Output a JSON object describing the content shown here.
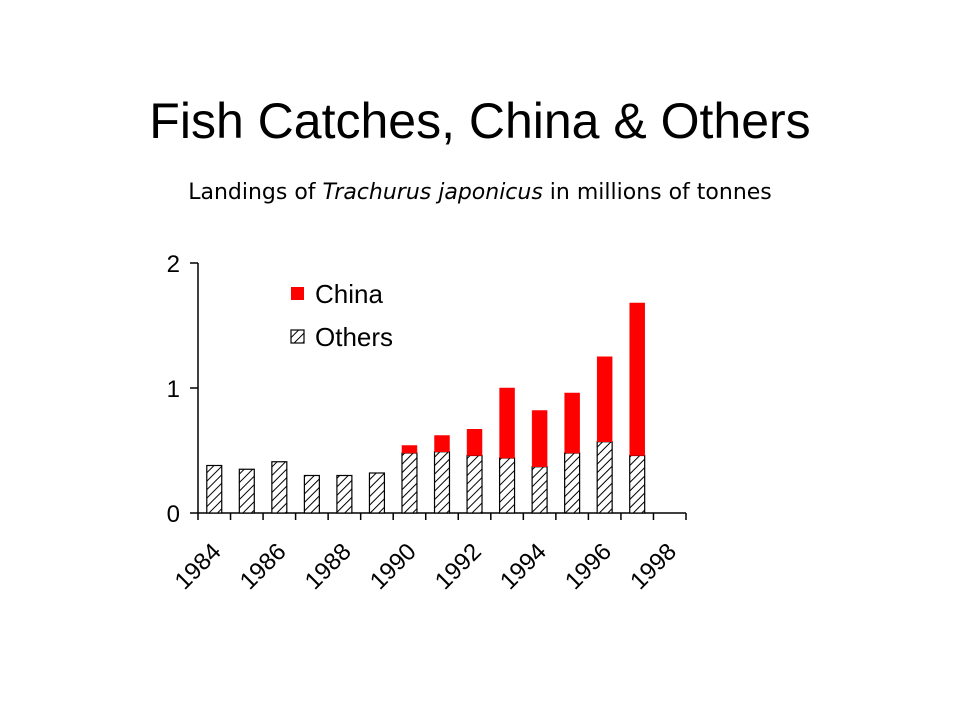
{
  "title": "Fish Catches, China & Others",
  "subtitle": {
    "before": "Landings of ",
    "species": "Trachurus japonicus",
    "after": " in millions of tonnes"
  },
  "chart_data": {
    "type": "bar",
    "stacked": true,
    "x": [
      1984,
      1985,
      1986,
      1987,
      1988,
      1989,
      1990,
      1991,
      1992,
      1993,
      1994,
      1995,
      1996,
      1997
    ],
    "x_tick_labels": [
      "1984",
      "1986",
      "1988",
      "1990",
      "1992",
      "1994",
      "1996",
      "1998"
    ],
    "series": [
      {
        "name": "Others",
        "pattern": "hatched",
        "values": [
          0.38,
          0.35,
          0.41,
          0.3,
          0.3,
          0.32,
          0.48,
          0.49,
          0.46,
          0.44,
          0.37,
          0.48,
          0.57,
          0.46
        ]
      },
      {
        "name": "China",
        "color": "#ff0000",
        "values": [
          0,
          0,
          0,
          0,
          0,
          0,
          0.06,
          0.13,
          0.21,
          0.56,
          0.45,
          0.48,
          0.68,
          1.22
        ]
      }
    ],
    "y_ticks": [
      0,
      1,
      2
    ],
    "ylim": [
      0,
      2
    ],
    "xlabel": "",
    "ylabel": "",
    "legend_position": "top-left"
  }
}
